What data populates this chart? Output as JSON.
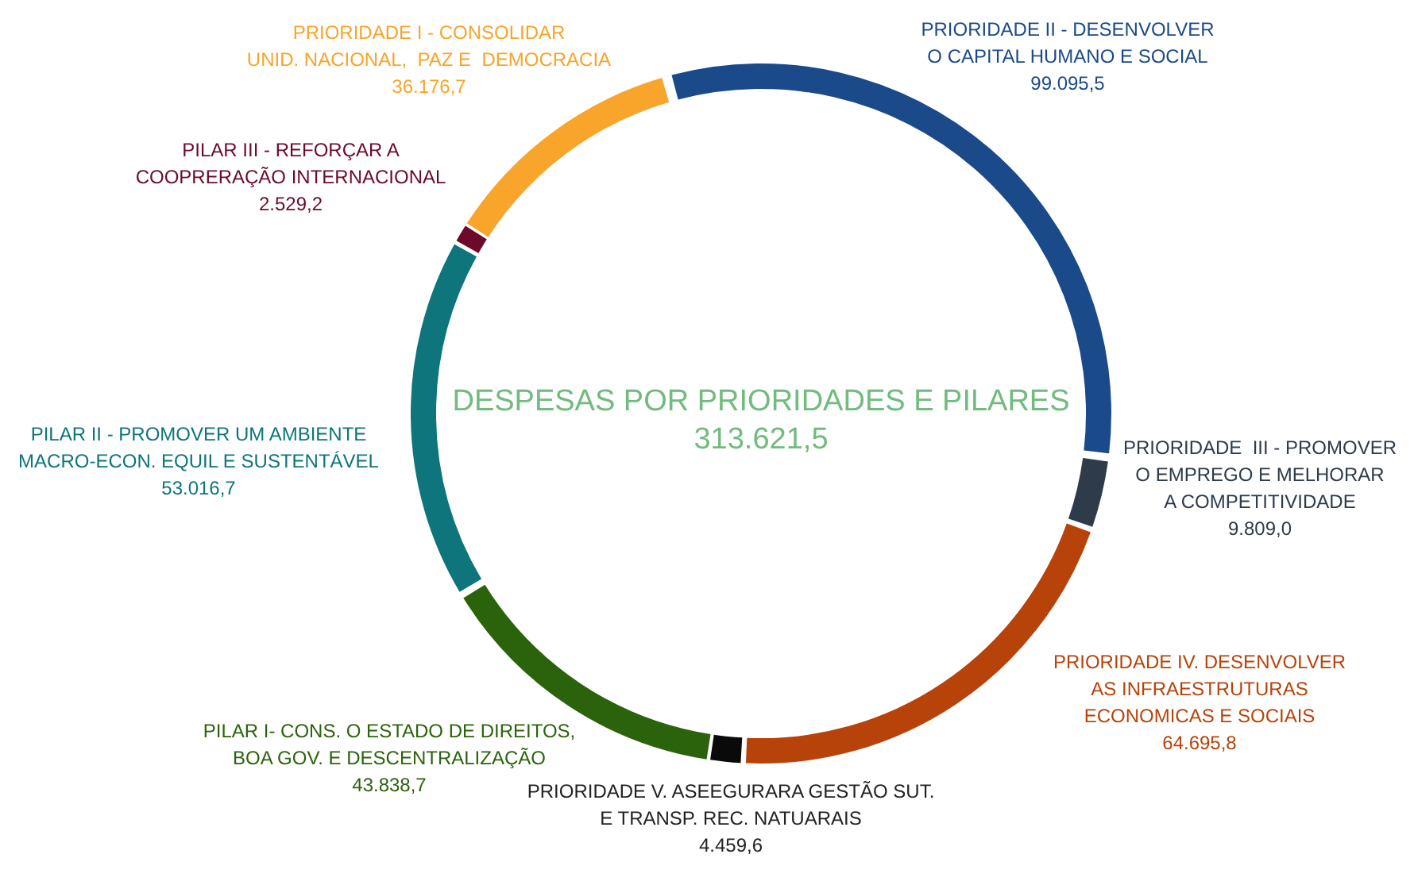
{
  "chart_data": {
    "type": "donut",
    "title": "DESPESAS POR PRIORIDADES E PILARES",
    "subtitle": "313.621,5",
    "categories": [
      "PRIORIDADE II - DESENVOLVER\nO CAPITAL HUMANO E SOCIAL",
      "PRIORIDADE  III - PROMOVER\nO EMPREGO E MELHORAR\nA COMPETITIVIDADE",
      "PRIORIDADE IV. DESENVOLVER\nAS INFRAESTRUTURAS\nECONOMICAS E SOCIAIS",
      "PRIORIDADE V. ASEEGURARA GESTÃO SUT.\nE TRANSP. REC. NATUARAIS",
      "PILAR I- CONS. O ESTADO DE DIREITOS,\nBOA GOV. E DESCENTRALIZAÇÃO",
      "PILAR II - PROMOVER UM AMBIENTE\nMACRO-ECON. EQUIL E SUSTENTÁVEL",
      "PILAR III - REFORÇAR A\nCOOPRERAÇÃO INTERNACIONAL",
      "PRIORIDADE I - CONSOLIDAR\nUNID. NACIONAL,  PAZ E  DEMOCRACIA"
    ],
    "values": [
      99095.5,
      9809.0,
      64695.8,
      4459.6,
      43838.7,
      53016.7,
      2529.2,
      36176.7
    ],
    "value_labels": [
      "99.095,5",
      "9.809,0",
      "64.695,8",
      "4.459,6",
      "43.838,7",
      "53.016,7",
      "2.529,2",
      "36.176,7"
    ],
    "colors": [
      "#1a4a8a",
      "#2e3b4a",
      "#b8430a",
      "#0a0a0a",
      "#2b630c",
      "#0d757b",
      "#6b0a2a",
      "#f9a42a"
    ],
    "legend": false
  }
}
